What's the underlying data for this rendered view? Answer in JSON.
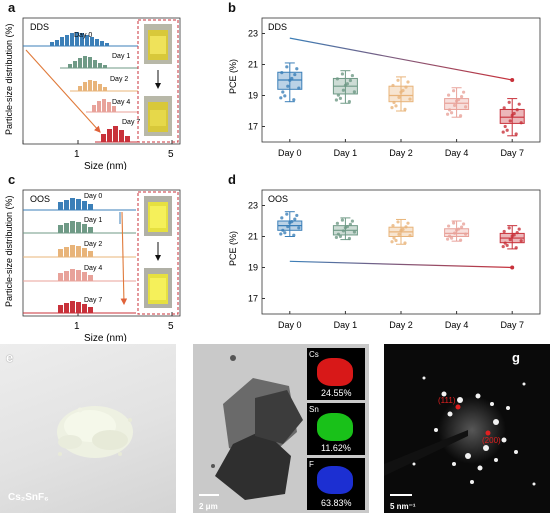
{
  "panels": {
    "a": {
      "label": "a",
      "tag": "DDS",
      "ylabel": "Particle-size distribution (%)",
      "xlabel": "Size (nm)",
      "xticks": [
        "1",
        "5"
      ],
      "days": [
        "Day 0",
        "Day 1",
        "Day 2",
        "Day 4",
        "Day 7"
      ]
    },
    "b": {
      "label": "b",
      "tag": "DDS",
      "ylabel": "PCE (%)"
    },
    "c": {
      "label": "c",
      "tag": "OOS",
      "ylabel": "Particle-size distribution (%)",
      "xlabel": "Size (nm)",
      "xticks": [
        "1",
        "5"
      ],
      "days": [
        "Day 0",
        "Day 1",
        "Day 2",
        "Day 4",
        "Day 7"
      ]
    },
    "d": {
      "label": "d",
      "tag": "OOS",
      "ylabel": "PCE (%)"
    },
    "e": {
      "label": "e",
      "caption": "Cs₂SnF₆"
    },
    "f": {
      "label": "f",
      "scalebar": "2 μm",
      "maps": [
        {
          "element": "Cs",
          "pct": "24.55%",
          "color": "#e01010"
        },
        {
          "element": "Sn",
          "pct": "11.62%",
          "color": "#12c412"
        },
        {
          "element": "F",
          "pct": "63.83%",
          "color": "#1a2fd0"
        }
      ]
    },
    "g": {
      "label": "g",
      "scalebar": "5 nm⁻¹",
      "spots": [
        "(111)",
        "(200)"
      ]
    }
  },
  "colors": {
    "day0": "#3b7fb8",
    "day1": "#6f9a86",
    "day2": "#e8b47a",
    "day4": "#e8a29a",
    "day7": "#c8313a"
  },
  "chart_data": [
    {
      "type": "box",
      "panel": "b",
      "title": "DDS",
      "categories": [
        "Day 0",
        "Day 1",
        "Day 2",
        "Day 4",
        "Day 7"
      ],
      "ylabel": "PCE (%)",
      "yticks": [
        17,
        19,
        21,
        23
      ],
      "ylim": [
        16,
        24
      ],
      "boxes": [
        {
          "min": 18.6,
          "q1": 19.4,
          "median": 20.0,
          "q3": 20.5,
          "max": 21.1
        },
        {
          "min": 18.5,
          "q1": 19.1,
          "median": 19.6,
          "q3": 20.1,
          "max": 20.6
        },
        {
          "min": 18.0,
          "q1": 18.6,
          "median": 19.0,
          "q3": 19.6,
          "max": 20.2
        },
        {
          "min": 17.6,
          "q1": 18.1,
          "median": 18.5,
          "q3": 18.8,
          "max": 19.5
        },
        {
          "min": 16.4,
          "q1": 17.2,
          "median": 17.6,
          "q3": 18.1,
          "max": 18.8
        }
      ],
      "trend": {
        "from": 22.7,
        "to": 20.0
      }
    },
    {
      "type": "box",
      "panel": "d",
      "title": "OOS",
      "categories": [
        "Day 0",
        "Day 1",
        "Day 2",
        "Day 4",
        "Day 7"
      ],
      "ylabel": "PCE (%)",
      "yticks": [
        17,
        19,
        21,
        23
      ],
      "ylim": [
        16,
        24
      ],
      "boxes": [
        {
          "min": 21.0,
          "q1": 21.4,
          "median": 21.7,
          "q3": 22.0,
          "max": 22.6
        },
        {
          "min": 20.8,
          "q1": 21.1,
          "median": 21.4,
          "q3": 21.7,
          "max": 22.2
        },
        {
          "min": 20.5,
          "q1": 21.0,
          "median": 21.3,
          "q3": 21.6,
          "max": 22.1
        },
        {
          "min": 20.7,
          "q1": 21.0,
          "median": 21.2,
          "q3": 21.5,
          "max": 22.0
        },
        {
          "min": 20.2,
          "q1": 20.6,
          "median": 20.9,
          "q3": 21.2,
          "max": 21.7
        }
      ],
      "trend": {
        "from": 19.4,
        "to": 19.0
      }
    }
  ]
}
